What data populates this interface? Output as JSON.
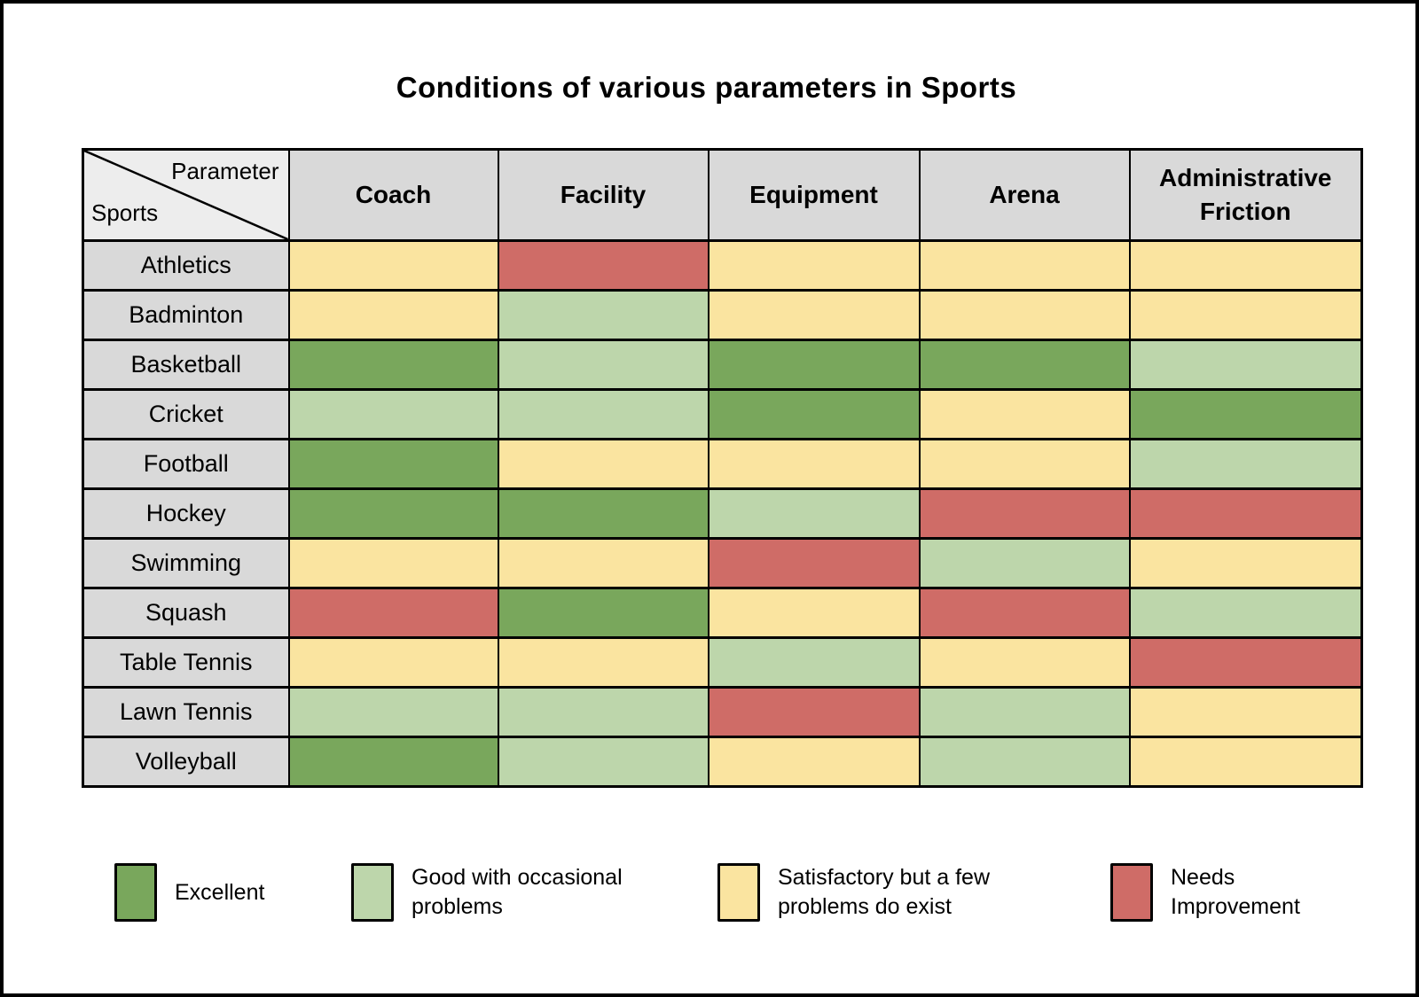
{
  "page": {
    "title": "Conditions of various parameters in Sports"
  },
  "chart_data": {
    "type": "heatmap",
    "title": "Conditions of various parameters in Sports",
    "corner": {
      "top": "Parameter",
      "bottom": "Sports"
    },
    "columns": [
      "Coach",
      "Facility",
      "Equipment",
      "Arena",
      "Administrative Friction"
    ],
    "rows": [
      "Athletics",
      "Badminton",
      "Basketball",
      "Cricket",
      "Football",
      "Hockey",
      "Swimming",
      "Squash",
      "Table Tennis",
      "Lawn Tennis",
      "Volleyball"
    ],
    "values": [
      [
        "satisfactory",
        "needs_improvement",
        "satisfactory",
        "satisfactory",
        "satisfactory"
      ],
      [
        "satisfactory",
        "good",
        "satisfactory",
        "satisfactory",
        "satisfactory"
      ],
      [
        "excellent",
        "good",
        "excellent",
        "excellent",
        "good"
      ],
      [
        "good",
        "good",
        "excellent",
        "satisfactory",
        "excellent"
      ],
      [
        "excellent",
        "satisfactory",
        "satisfactory",
        "satisfactory",
        "good"
      ],
      [
        "excellent",
        "excellent",
        "good",
        "needs_improvement",
        "needs_improvement"
      ],
      [
        "satisfactory",
        "satisfactory",
        "needs_improvement",
        "good",
        "satisfactory"
      ],
      [
        "needs_improvement",
        "excellent",
        "satisfactory",
        "needs_improvement",
        "good"
      ],
      [
        "satisfactory",
        "satisfactory",
        "good",
        "satisfactory",
        "needs_improvement"
      ],
      [
        "good",
        "good",
        "needs_improvement",
        "good",
        "satisfactory"
      ],
      [
        "excellent",
        "good",
        "satisfactory",
        "good",
        "satisfactory"
      ]
    ],
    "scale": [
      {
        "key": "excellent",
        "label": "Excellent",
        "color": "#79A75C"
      },
      {
        "key": "good",
        "label": "Good with occasional problems",
        "color": "#BDD6AB"
      },
      {
        "key": "satisfactory",
        "label": "Satisfactory but a few problems do exist",
        "color": "#FAE4A0"
      },
      {
        "key": "needs_improvement",
        "label": "Needs Improvement",
        "color": "#CF6C67"
      }
    ],
    "legend_position": "bottom",
    "grid": true
  },
  "colors": {
    "header_bg": "#D9D9D9",
    "corner_bg": "#EDEDED",
    "grid_line": "#000000",
    "canvas_bg": "#FFFFFF",
    "title_color": "#000000"
  }
}
